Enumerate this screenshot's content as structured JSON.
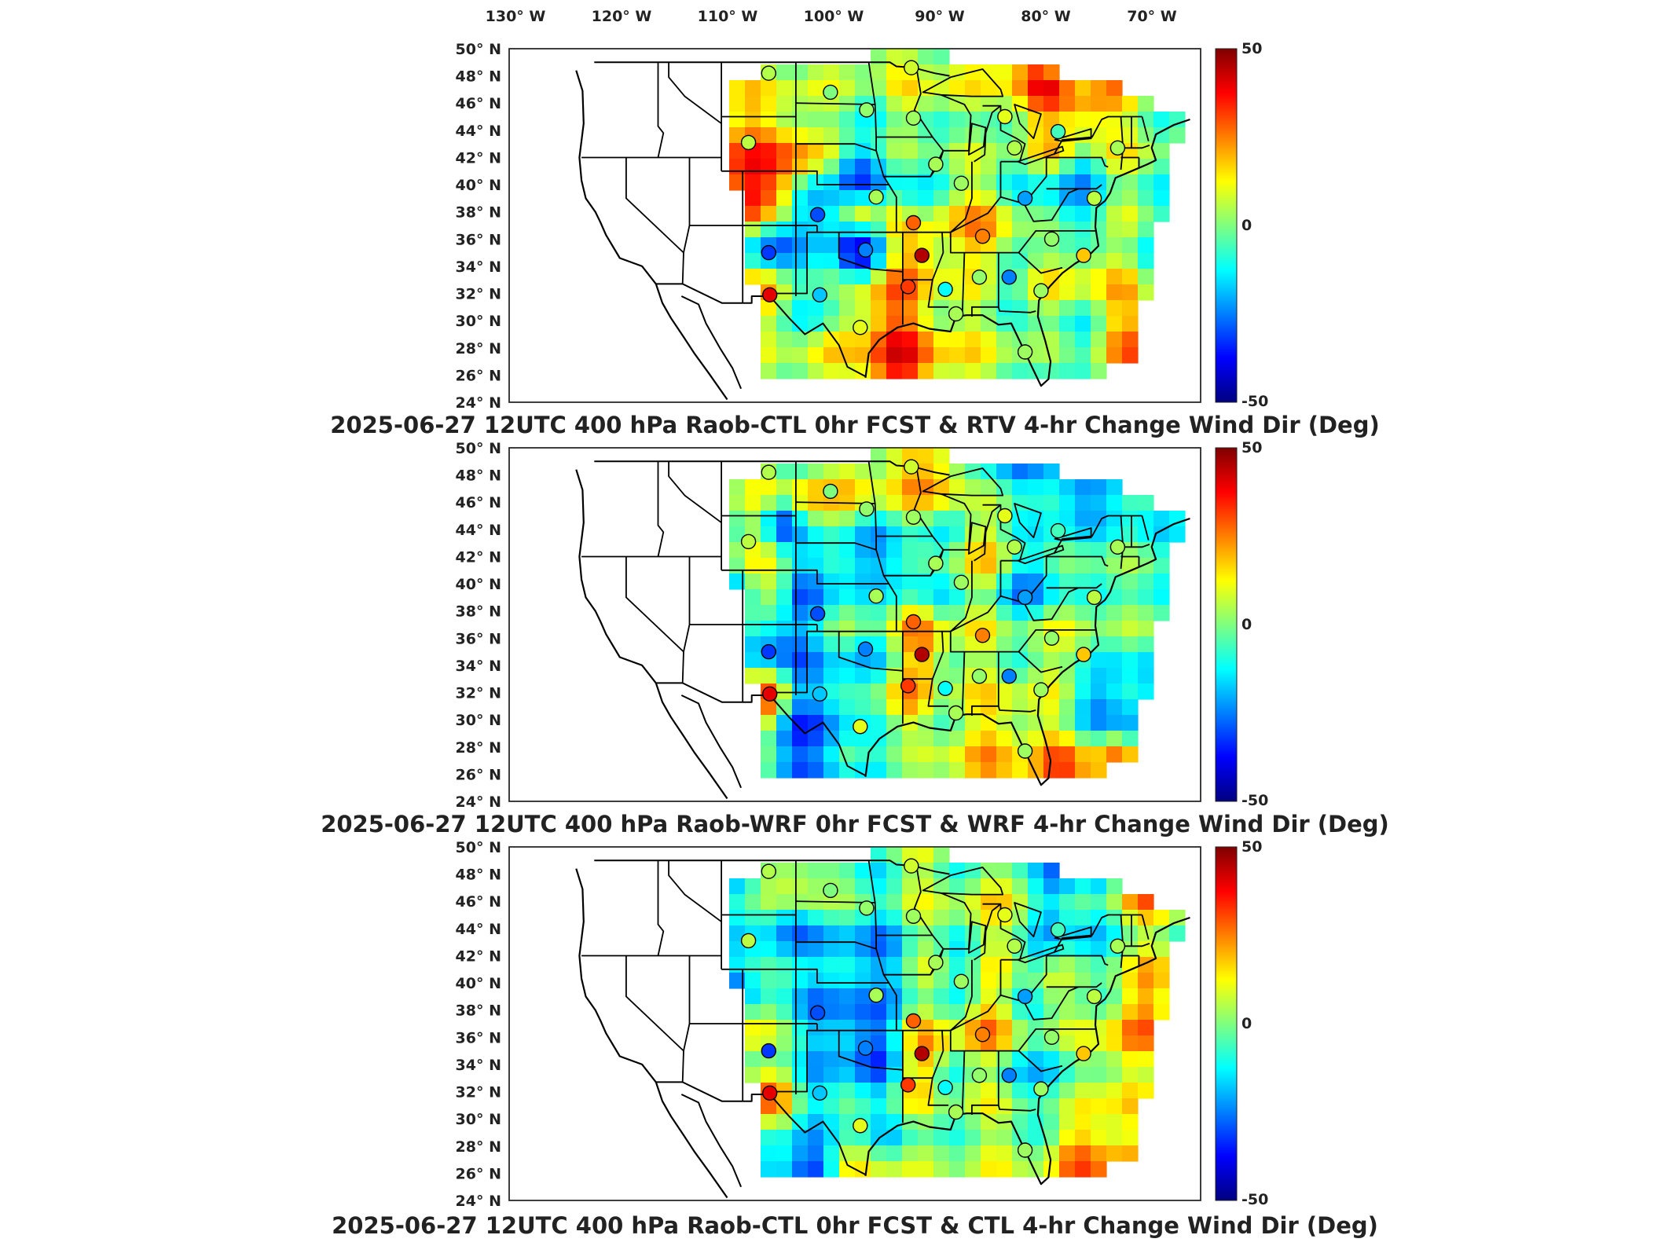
{
  "longitude_labels": [
    "130° W",
    "120° W",
    "110° W",
    "100° W",
    "90° W",
    "80° W",
    "70° W"
  ],
  "latitude_labels": [
    "50° N",
    "48° N",
    "46° N",
    "44° N",
    "42° N",
    "40° N",
    "38° N",
    "36° N",
    "34° N",
    "32° N",
    "30° N",
    "28° N",
    "26° N",
    "24° N"
  ],
  "colorbar": {
    "max_label": "50",
    "mid_label": "0",
    "min_label": "-50",
    "range": [
      -50,
      50
    ],
    "colors": [
      "#00007f",
      "#0000ff",
      "#007fff",
      "#00ffff",
      "#7fff7f",
      "#ffff00",
      "#ff7f00",
      "#ff0000",
      "#7f0000"
    ]
  },
  "panels": [
    {
      "title": "2025-06-27 12UTC 400 hPa Raob-CTL 0hr FCST & RTV 4-hr Change Wind Dir (Deg)",
      "seed": 11
    },
    {
      "title": "2025-06-27 12UTC 400 hPa Raob-WRF 0hr FCST & WRF 4-hr Change Wind Dir (Deg)",
      "seed": 29
    },
    {
      "title": "2025-06-27 12UTC 400 hPa Raob-CTL 0hr FCST & CTL 4-hr Change Wind Dir (Deg)",
      "seed": 47
    }
  ],
  "stations": [
    {
      "lon": -106.6,
      "lat": 48.2,
      "value": 5
    },
    {
      "lon": -100.8,
      "lat": 46.8,
      "value": 0
    },
    {
      "lon": -97.4,
      "lat": 45.5,
      "value": 2
    },
    {
      "lon": -93.0,
      "lat": 44.9,
      "value": 3
    },
    {
      "lon": -93.2,
      "lat": 48.6,
      "value": 8
    },
    {
      "lon": -108.5,
      "lat": 43.1,
      "value": 6
    },
    {
      "lon": -90.9,
      "lat": 41.5,
      "value": 4
    },
    {
      "lon": -88.5,
      "lat": 40.1,
      "value": 3
    },
    {
      "lon": -84.4,
      "lat": 45.0,
      "value": 10
    },
    {
      "lon": -83.5,
      "lat": 42.7,
      "value": 5
    },
    {
      "lon": -79.4,
      "lat": 43.9,
      "value": -6
    },
    {
      "lon": -73.8,
      "lat": 42.7,
      "value": 4
    },
    {
      "lon": -76.0,
      "lat": 39.0,
      "value": 6
    },
    {
      "lon": -82.5,
      "lat": 39.0,
      "value": -22
    },
    {
      "lon": -102.0,
      "lat": 37.8,
      "value": -30
    },
    {
      "lon": -96.5,
      "lat": 39.1,
      "value": 4
    },
    {
      "lon": -93.0,
      "lat": 37.2,
      "value": 28
    },
    {
      "lon": -86.5,
      "lat": 36.2,
      "value": 25
    },
    {
      "lon": -80.0,
      "lat": 36.0,
      "value": 2
    },
    {
      "lon": -77.0,
      "lat": 34.8,
      "value": 18
    },
    {
      "lon": -106.6,
      "lat": 35.0,
      "value": -32
    },
    {
      "lon": -97.5,
      "lat": 35.2,
      "value": -25
    },
    {
      "lon": -92.2,
      "lat": 34.8,
      "value": 45
    },
    {
      "lon": -106.5,
      "lat": 31.9,
      "value": 40
    },
    {
      "lon": -101.8,
      "lat": 31.9,
      "value": -18
    },
    {
      "lon": -93.5,
      "lat": 32.5,
      "value": 32
    },
    {
      "lon": -90.0,
      "lat": 32.3,
      "value": -12
    },
    {
      "lon": -86.8,
      "lat": 33.2,
      "value": 2
    },
    {
      "lon": -84.0,
      "lat": 33.2,
      "value": -25
    },
    {
      "lon": -81.0,
      "lat": 32.2,
      "value": 3
    },
    {
      "lon": -89.0,
      "lat": 30.5,
      "value": 4
    },
    {
      "lon": -98.0,
      "lat": 29.5,
      "value": 10
    },
    {
      "lon": -82.5,
      "lat": 27.7,
      "value": 3
    }
  ]
}
